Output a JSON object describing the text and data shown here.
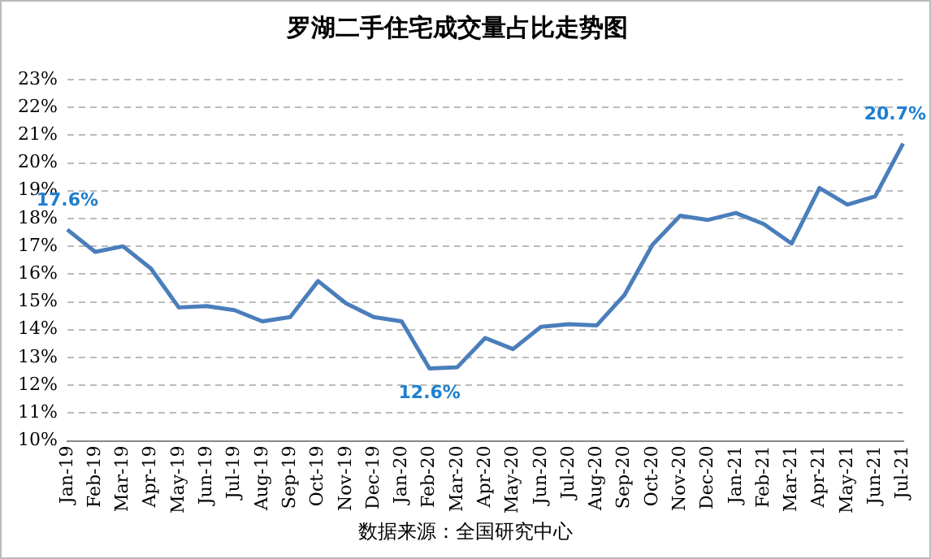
{
  "chart_data": {
    "type": "line",
    "title": "罗湖二手住宅成交量占比走势图",
    "categories": [
      "Jan-19",
      "Feb-19",
      "Mar-19",
      "Apr-19",
      "May-19",
      "Jun-19",
      "Jul-19",
      "Aug-19",
      "Sep-19",
      "Oct-19",
      "Nov-19",
      "Dec-19",
      "Jan-20",
      "Feb-20",
      "Mar-20",
      "Apr-20",
      "May-20",
      "Jun-20",
      "Jul-20",
      "Aug-20",
      "Sep-20",
      "Oct-20",
      "Nov-20",
      "Dec-20",
      "Jan-21",
      "Feb-21",
      "Mar-21",
      "Apr-21",
      "May-21",
      "Jun-21",
      "Jul-21"
    ],
    "series": [
      {
        "color": "#4a7ebb",
        "values": [
          17.6,
          16.8,
          17.0,
          16.2,
          14.8,
          14.85,
          14.7,
          14.3,
          14.45,
          15.75,
          14.95,
          14.45,
          14.3,
          12.6,
          12.65,
          13.7,
          13.3,
          14.1,
          14.2,
          14.15,
          15.25,
          17.05,
          18.1,
          17.95,
          18.2,
          17.8,
          17.1,
          19.1,
          18.5,
          18.8,
          20.7
        ],
        "value_labels": [
          "17.6%",
          null,
          null,
          null,
          null,
          null,
          null,
          null,
          null,
          null,
          null,
          null,
          null,
          "12.6%",
          null,
          null,
          null,
          null,
          null,
          null,
          null,
          null,
          null,
          null,
          null,
          null,
          null,
          null,
          null,
          null,
          "20.7%"
        ]
      }
    ],
    "ylim": [
      10,
      23
    ],
    "yticks": [
      {
        "value": 10,
        "label": "10%"
      },
      {
        "value": 11,
        "label": "11%"
      },
      {
        "value": 12,
        "label": "12%"
      },
      {
        "value": 13,
        "label": "13%"
      },
      {
        "value": 14,
        "label": "14%"
      },
      {
        "value": 15,
        "label": "15%"
      },
      {
        "value": 16,
        "label": "16%"
      },
      {
        "value": 17,
        "label": "17%"
      },
      {
        "value": 18,
        "label": "18%"
      },
      {
        "value": 19,
        "label": "19%"
      },
      {
        "value": 20,
        "label": "20%"
      },
      {
        "value": 21,
        "label": "21%"
      },
      {
        "value": 22,
        "label": "22%"
      },
      {
        "value": 23,
        "label": "23%"
      }
    ],
    "grid": "y",
    "legend": false,
    "marker": "none",
    "line_style": "solid",
    "annotations": [
      "数据来源：全国研究中心"
    ]
  }
}
